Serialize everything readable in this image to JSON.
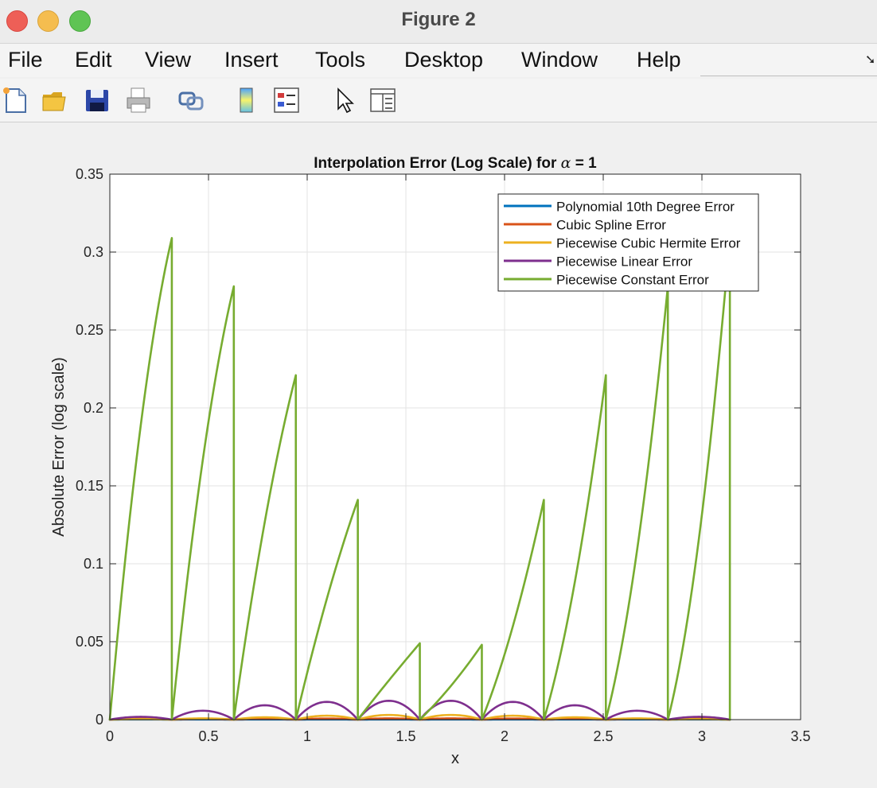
{
  "window": {
    "title": "Figure 2"
  },
  "menu": [
    "File",
    "Edit",
    "View",
    "Insert",
    "Tools",
    "Desktop",
    "Window",
    "Help"
  ],
  "toolbar": {
    "icons": [
      "new-figure-icon",
      "open-folder-icon",
      "save-icon",
      "print-icon",
      "link-icon",
      "colorbar-icon",
      "legend-icon",
      "pointer-icon",
      "property-editor-icon"
    ]
  },
  "colors": {
    "polynomial": "#0072bd",
    "spline": "#d95319",
    "hermite": "#edb120",
    "linear": "#7e2f8e",
    "constant": "#77ac30"
  },
  "chart_data": {
    "type": "line",
    "title": "Interpolation Error (Log Scale) for α = 1",
    "title_prefix": "Interpolation Error (Log Scale) for ",
    "title_symbol": "α",
    "title_suffix": " = 1",
    "xlabel": "x",
    "ylabel": "Absolute Error (log scale)",
    "xlim": [
      0,
      3.5
    ],
    "ylim": [
      0,
      0.35
    ],
    "xticks": [
      "0",
      "0.5",
      "1",
      "1.5",
      "2",
      "2.5",
      "3",
      "3.5"
    ],
    "yticks": [
      "0",
      "0.05",
      "0.1",
      "0.15",
      "0.2",
      "0.25",
      "0.3",
      "0.35"
    ],
    "grid": true,
    "legend_position": "top-right",
    "nodes": [
      0,
      0.3142,
      0.6283,
      0.9425,
      1.2566,
      1.5708,
      1.885,
      2.1991,
      2.5133,
      2.8274,
      3.1416
    ],
    "series": [
      {
        "name": "Polynomial 10th Degree Error",
        "color": "#0072bd",
        "type": "arches",
        "peaks": [
          0.0001,
          0.0001,
          0.0001,
          0.0001,
          0.0001,
          0.0001,
          0.0001,
          0.0001,
          0.0001,
          0.0001
        ]
      },
      {
        "name": "Cubic Spline Error",
        "color": "#d95319",
        "type": "arches",
        "peaks": [
          0.0006,
          0.0004,
          0.0005,
          0.0007,
          0.0008,
          0.0008,
          0.0007,
          0.0005,
          0.0004,
          0.0006
        ]
      },
      {
        "name": "Piecewise Cubic Hermite Error",
        "color": "#edb120",
        "type": "arches",
        "peaks": [
          0.0003,
          0.0008,
          0.0015,
          0.0025,
          0.003,
          0.003,
          0.0025,
          0.0015,
          0.0008,
          0.0003
        ]
      },
      {
        "name": "Piecewise Linear Error",
        "color": "#7e2f8e",
        "type": "arches",
        "peaks": [
          0.0018,
          0.0057,
          0.0092,
          0.0114,
          0.0121,
          0.0121,
          0.0114,
          0.0092,
          0.0057,
          0.0018
        ]
      },
      {
        "name": "Piecewise Constant Error",
        "color": "#77ac30",
        "type": "sawtooth",
        "peaks": [
          0.309,
          0.278,
          0.221,
          0.141,
          0.049,
          0.048,
          0.141,
          0.221,
          0.278,
          0.309
        ],
        "curvature": [
          0.45,
          0.4,
          0.3,
          0.2,
          0.05,
          -0.2,
          -0.3,
          -0.4,
          -0.45,
          -0.5
        ]
      }
    ]
  }
}
